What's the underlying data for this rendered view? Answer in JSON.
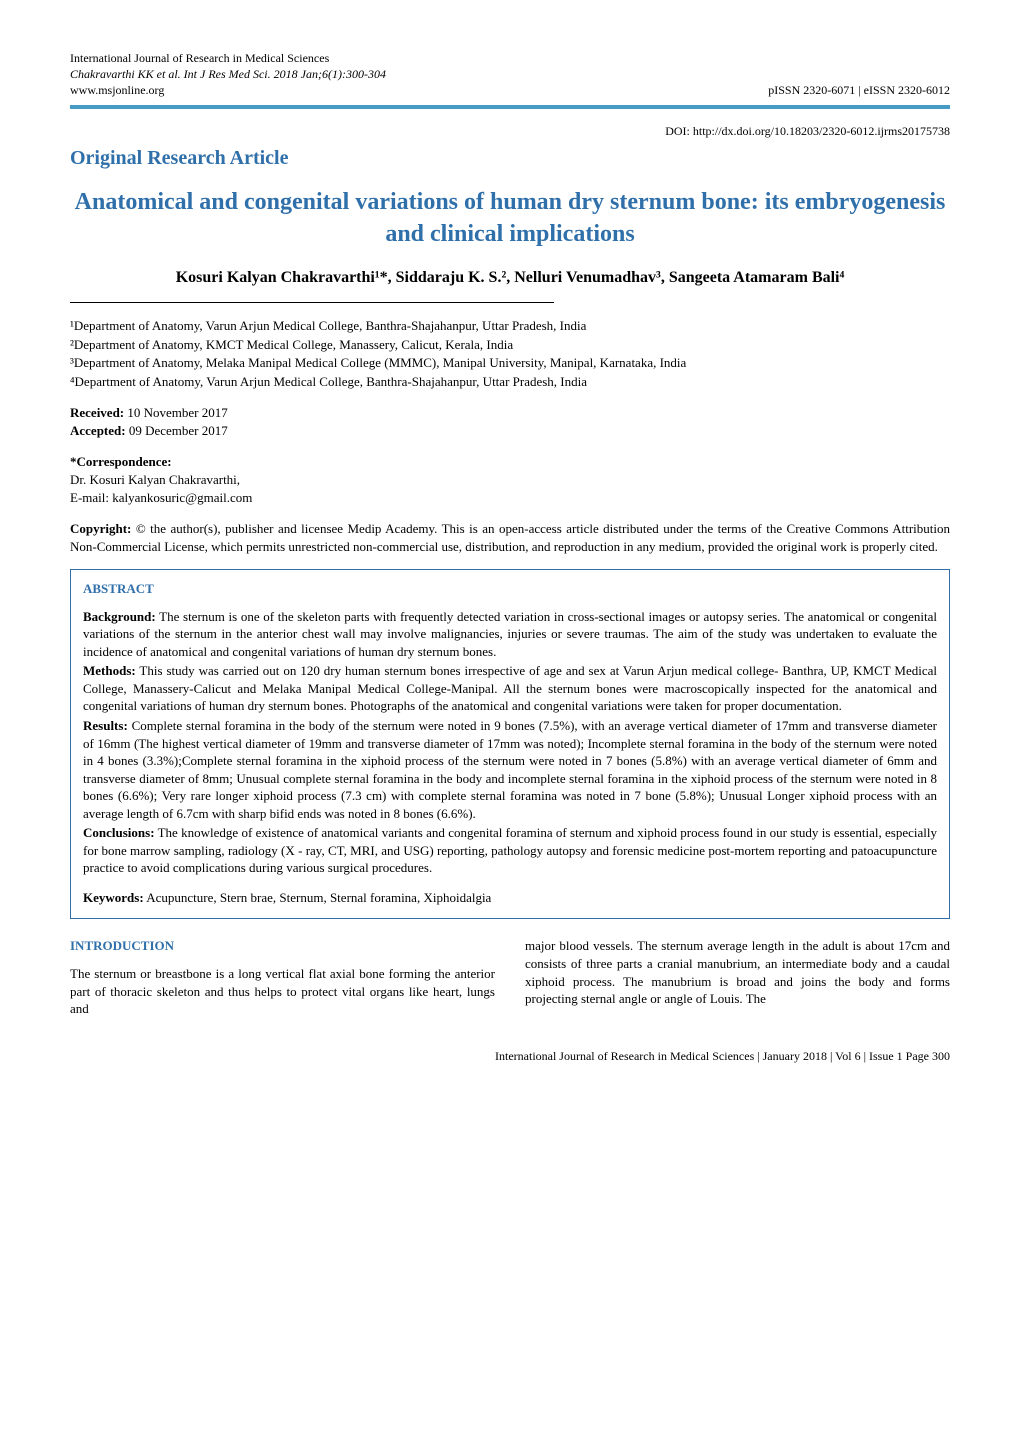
{
  "header": {
    "journal_name": "International Journal of Research in Medical Sciences",
    "citation": "Chakravarthi KK et al. Int J Res Med Sci. 2018 Jan;6(1):300-304",
    "website": "www.msjonline.org",
    "issn": "pISSN 2320-6071 | eISSN 2320-6012"
  },
  "doi": "DOI: http://dx.doi.org/10.18203/2320-6012.ijrms20175738",
  "article_type": "Original Research Article",
  "title": "Anatomical and congenital variations of human dry sternum bone: its embryogenesis and clinical implications",
  "authors": "Kosuri Kalyan Chakravarthi¹*, Siddaraju K. S.², Nelluri Venumadhav³, Sangeeta Atamaram Bali⁴",
  "affiliations": [
    "¹Department of Anatomy, Varun Arjun Medical College, Banthra-Shajahanpur, Uttar Pradesh, India",
    "²Department of Anatomy, KMCT Medical College, Manassery, Calicut, Kerala, India",
    "³Department of Anatomy, Melaka Manipal Medical College (MMMC), Manipal University, Manipal, Karnataka, India",
    "⁴Department of Anatomy, Varun Arjun Medical College, Banthra-Shajahanpur, Uttar Pradesh, India"
  ],
  "dates": {
    "received_label": "Received:",
    "received": " 10 November 2017",
    "accepted_label": "Accepted:",
    "accepted": " 09 December 2017"
  },
  "correspondence": {
    "label": "*Correspondence:",
    "name": "Dr. Kosuri Kalyan Chakravarthi,",
    "email": "E-mail: kalyankosuric@gmail.com"
  },
  "copyright": {
    "label": "Copyright:",
    "text": " © the author(s), publisher and licensee Medip Academy. This is an open-access article distributed under the terms of the Creative Commons Attribution Non-Commercial License, which permits unrestricted non-commercial use, distribution, and reproduction in any medium, provided the original work is properly cited."
  },
  "abstract": {
    "heading": "ABSTRACT",
    "background_label": "Background:",
    "background": " The sternum is one of the skeleton parts with frequently detected variation in cross-sectional images or autopsy series. The anatomical or congenital variations of the sternum in the anterior chest wall may involve malignancies, injuries or severe traumas. The aim of the study was undertaken to evaluate the incidence of anatomical and congenital variations of human dry sternum bones.",
    "methods_label": "Methods:",
    "methods": " This study was carried out on 120 dry human sternum bones irrespective of age and sex at Varun Arjun medical college- Banthra, UP, KMCT Medical College, Manassery-Calicut and Melaka Manipal Medical College-Manipal. All the sternum bones were macroscopically inspected for the anatomical and congenital variations of human dry sternum bones. Photographs of the anatomical and congenital variations were taken for proper documentation.",
    "results_label": "Results:",
    "results": " Complete sternal foramina in the body of the sternum were noted in 9 bones (7.5%), with an average vertical diameter of 17mm and transverse diameter of 16mm (The highest vertical diameter of 19mm and transverse diameter of 17mm was noted); Incomplete sternal foramina in the body of the sternum were noted in 4 bones (3.3%);Complete sternal foramina in the xiphoid process of the sternum were noted in 7 bones (5.8%) with an average vertical diameter of 6mm and transverse diameter of 8mm; Unusual complete sternal foramina in the body and incomplete sternal foramina in the xiphoid process of the sternum were noted in 8 bones (6.6%); Very rare longer xiphoid process (7.3 cm) with complete sternal foramina was noted in 7 bone (5.8%); Unusual Longer xiphoid process with an average length of 6.7cm with sharp bifid ends was noted in 8 bones (6.6%).",
    "conclusions_label": "Conclusions:",
    "conclusions": " The knowledge of existence of anatomical variants and congenital foramina of sternum and xiphoid process found in our study is essential, especially for bone marrow sampling, radiology (X - ray, CT, MRI, and USG) reporting, pathology autopsy and forensic medicine post-mortem reporting and patoacupuncture practice to avoid complications during various surgical procedures.",
    "keywords_label": "Keywords:",
    "keywords": " Acupuncture, Stern brae, Sternum, Sternal foramina, Xiphoidalgia"
  },
  "introduction": {
    "heading": "INTRODUCTION",
    "col1": "The sternum or breastbone is a long vertical flat axial bone forming the anterior part of thoracic skeleton and thus helps to protect vital organs like heart, lungs and",
    "col2": "major blood vessels. The sternum average length in the adult is about 17cm and consists of three parts a cranial manubrium, an intermediate body and a caudal xiphoid process. The manubrium is broad and joins the body and forms projecting sternal angle or angle of Louis. The"
  },
  "footer": "International Journal of Research in Medical Sciences | January 2018 | Vol 6 | Issue 1    Page 300",
  "colors": {
    "accent": "#2f6faa",
    "rule": "#469bc5",
    "text": "#000000",
    "background": "#ffffff"
  }
}
